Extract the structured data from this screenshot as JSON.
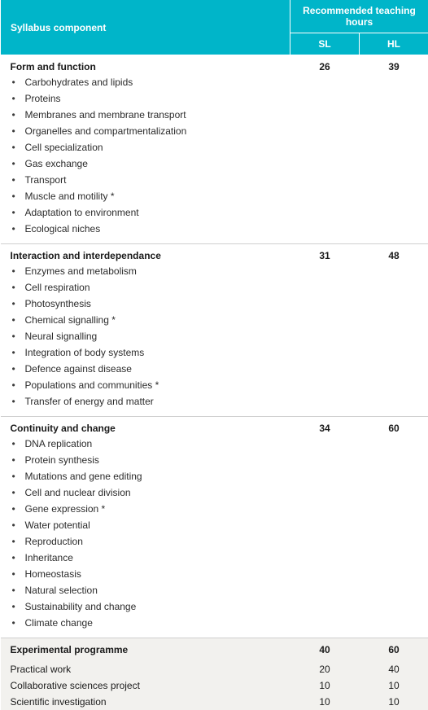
{
  "header": {
    "syllabus_component": "Syllabus component",
    "recommended": "Recommended teaching hours",
    "sl": "SL",
    "hl": "HL"
  },
  "colors": {
    "header_bg": "#00b5c9",
    "header_fg": "#ffffff",
    "shade_bg": "#f2f1ee",
    "border": "#cfcfcf",
    "text": "#1a1a1a"
  },
  "sections": [
    {
      "title": "Form and function",
      "sl": 26,
      "hl": 39,
      "has_bullets": true,
      "shaded": false,
      "items": [
        "Carbohydrates and lipids",
        "Proteins",
        "Membranes and membrane transport",
        "Organelles and compartmentalization",
        "Cell specialization",
        "Gas exchange",
        "Transport",
        "Muscle and motility  *",
        "Adaptation to environment",
        "Ecological niches"
      ]
    },
    {
      "title": "Interaction and interdependance",
      "sl": 31,
      "hl": 48,
      "has_bullets": true,
      "shaded": false,
      "items": [
        "Enzymes and metabolism",
        "Cell respiration",
        "Photosynthesis",
        "Chemical signalling  *",
        "Neural signalling",
        "Integration of body systems",
        "Defence against disease",
        "Populations and communities  *",
        "Transfer of energy and matter"
      ]
    },
    {
      "title": "Continuity and change",
      "sl": 34,
      "hl": 60,
      "has_bullets": true,
      "shaded": false,
      "items": [
        "DNA replication",
        "Protein synthesis",
        "Mutations and gene editing",
        "Cell and nuclear division",
        "Gene expression  *",
        "Water potential",
        "Reproduction",
        "Inheritance",
        "Homeostasis",
        "Natural selection",
        "Sustainability and change",
        "Climate change"
      ]
    },
    {
      "title": "Experimental programme",
      "sl": 40,
      "hl": 60,
      "has_bullets": false,
      "shaded": true,
      "subrows": [
        {
          "label": "Practical work",
          "sl": 20,
          "hl": 40
        },
        {
          "label": "Collaborative sciences project",
          "sl": 10,
          "hl": 10
        },
        {
          "label": "Scientific investigation",
          "sl": 10,
          "hl": 10
        }
      ]
    }
  ]
}
